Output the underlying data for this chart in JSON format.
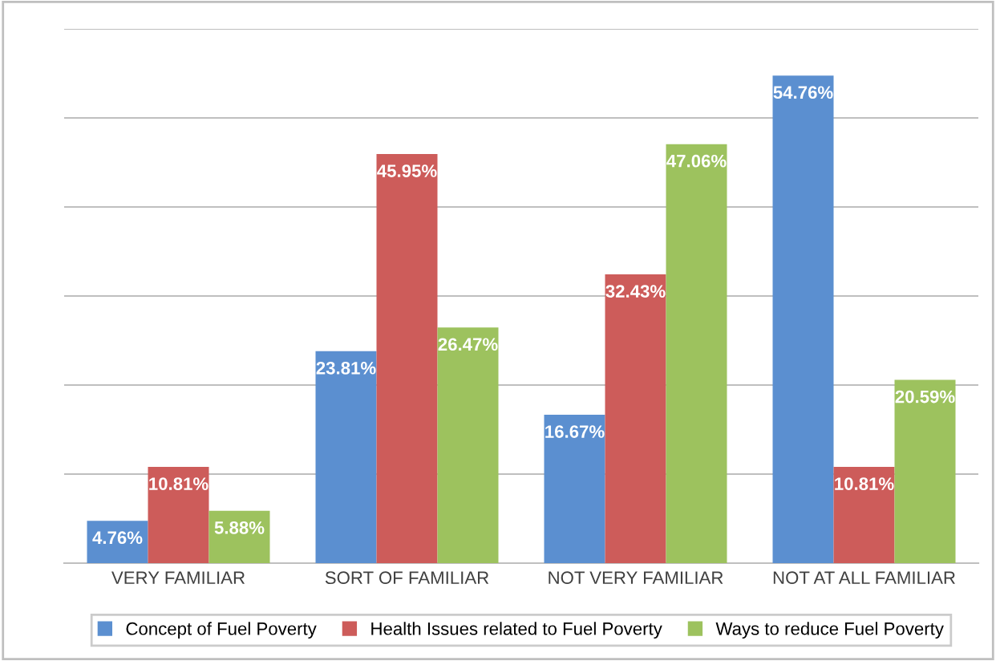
{
  "chart_data": {
    "type": "bar",
    "categories": [
      "VERY FAMILIAR",
      "SORT OF FAMILIAR",
      "NOT VERY FAMILIAR",
      "NOT AT ALL FAMILIAR"
    ],
    "series": [
      {
        "name": "Concept of Fuel Poverty",
        "color": "#5b8fd0",
        "values": [
          4.76,
          23.81,
          16.67,
          54.76
        ],
        "value_labels": [
          "4.76%",
          "23.81%",
          "16.67%",
          "54.76%"
        ]
      },
      {
        "name": "Health Issues related to Fuel Poverty",
        "color": "#cd5c5a",
        "values": [
          10.81,
          45.95,
          32.43,
          10.81
        ],
        "value_labels": [
          "10.81%",
          "45.95%",
          "32.43%",
          "10.81%"
        ]
      },
      {
        "name": "Ways to reduce Fuel Poverty",
        "color": "#9dc25e",
        "values": [
          5.88,
          26.47,
          47.06,
          20.59
        ],
        "value_labels": [
          "5.88%",
          "26.47%",
          "47.06%",
          "20.59%"
        ]
      }
    ],
    "ylim": [
      0,
      60
    ],
    "yticks": [
      {
        "value": 0,
        "label": null
      },
      {
        "value": 10,
        "label": null
      },
      {
        "value": 20,
        "label": null
      },
      {
        "value": 30,
        "label": null
      },
      {
        "value": 40,
        "label": null
      },
      {
        "value": 50,
        "label": null
      },
      {
        "value": 60,
        "label": null
      }
    ],
    "grid": "y",
    "legend": "bottom"
  }
}
